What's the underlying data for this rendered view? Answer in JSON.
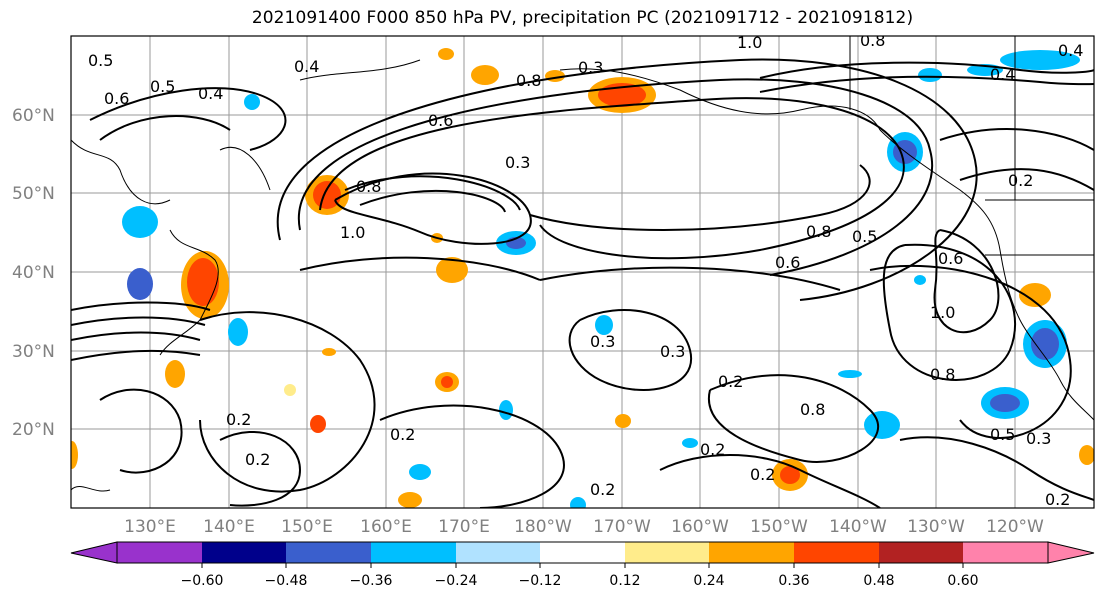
{
  "title": "2021091400 F000 850 hPa PV, precipitation PC (2021091712 - 2021091812)",
  "lat_labels": [
    "60°N",
    "50°N",
    "40°N",
    "30°N",
    "20°N"
  ],
  "lon_labels": [
    "130°E",
    "140°E",
    "150°E",
    "160°E",
    "170°E",
    "180°W",
    "170°W",
    "160°W",
    "150°W",
    "140°W",
    "130°W",
    "120°W"
  ],
  "contour_labels": [
    "0.5",
    "0.6",
    "0.5",
    "0.4",
    "0.4",
    "0.6",
    "0.3",
    "0.8",
    "1.0",
    "0.8",
    "0.3",
    "0.8",
    "0.5",
    "0.6",
    "0.6",
    "0.3",
    "0.2",
    "0.2",
    "0.3",
    "0.2",
    "0.2",
    "0.2",
    "0.2",
    "0.5",
    "0.3",
    "0.2",
    "1.0",
    "0.8",
    "0.8",
    "0.2",
    "0.4",
    "1.0",
    "0.8",
    "0.2",
    "0.4"
  ],
  "colorbar": {
    "ticks": [
      "−0.60",
      "−0.48",
      "−0.36",
      "−0.24",
      "−0.12",
      "0.12",
      "0.24",
      "0.36",
      "0.48",
      "0.60"
    ],
    "colors": [
      "#9932cc",
      "#00008b",
      "#3a5fcd",
      "#00bfff",
      "#b0e2ff",
      "#ffffff",
      "#ffec8b",
      "#ffa500",
      "#ff4500",
      "#b22222",
      "#ff82ab"
    ]
  }
}
